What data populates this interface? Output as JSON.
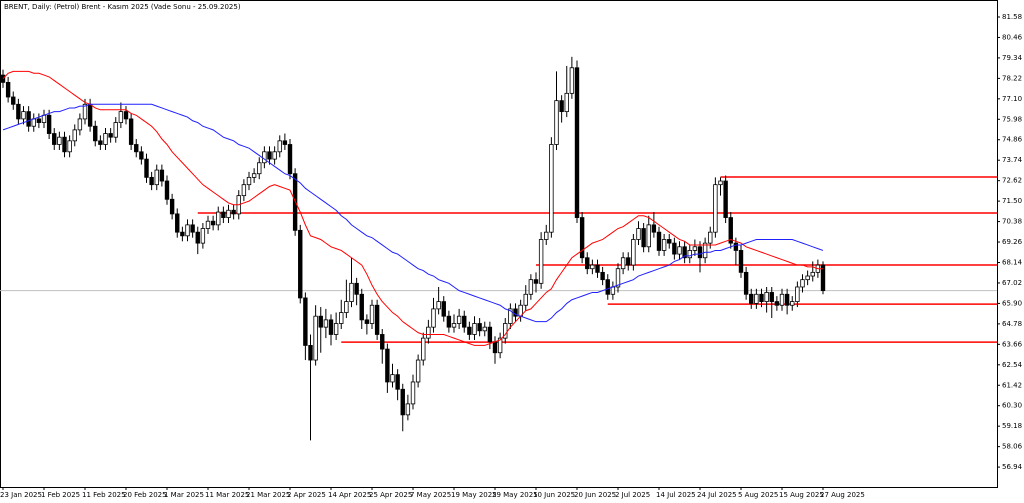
{
  "chart_data": {
    "type": "candlestick",
    "title": "BRENT, Daily:  (Petrol) Brent - Kasım 2025 (Vade Sonu - 25.09.2025)",
    "categories": [
      "23 Jan 2025",
      null,
      null,
      null,
      null,
      null,
      null,
      null,
      "1 Feb 2025",
      null,
      null,
      null,
      null,
      null,
      null,
      null,
      "11 Feb 2025",
      null,
      null,
      null,
      null,
      null,
      null,
      null,
      "20 Feb 2025",
      null,
      null,
      null,
      null,
      null,
      null,
      null,
      "1 Mar 2025",
      null,
      null,
      null,
      null,
      null,
      null,
      null,
      "11 Mar 2025",
      null,
      null,
      null,
      null,
      null,
      null,
      null,
      "21 Mar 2025",
      null,
      null,
      null,
      null,
      null,
      null,
      null,
      "2 Apr 2025",
      null,
      null,
      null,
      null,
      null,
      null,
      null,
      "14 Apr 2025",
      null,
      null,
      null,
      null,
      null,
      null,
      null,
      "25 Apr 2025",
      null,
      null,
      null,
      null,
      null,
      null,
      null,
      "7 May 2025",
      null,
      null,
      null,
      null,
      null,
      null,
      null,
      "19 May 2025",
      null,
      null,
      null,
      null,
      null,
      null,
      null,
      "29 May 2025",
      null,
      null,
      null,
      null,
      null,
      null,
      null,
      "10 Jun 2025",
      null,
      null,
      null,
      null,
      null,
      null,
      null,
      "20 Jun 2025",
      null,
      null,
      null,
      null,
      null,
      null,
      null,
      "2 Jul 2025",
      null,
      null,
      null,
      null,
      null,
      null,
      null,
      "14 Jul 2025",
      null,
      null,
      null,
      null,
      null,
      null,
      null,
      "24 Jul 2025",
      null,
      null,
      null,
      null,
      null,
      null,
      null,
      "5 Aug 2025",
      null,
      null,
      null,
      null,
      null,
      null,
      null,
      "15 Aug 2025",
      null,
      null,
      null,
      null,
      null,
      null,
      null,
      "27 Aug 2025"
    ],
    "open": [
      78.4,
      78.0,
      77.2,
      76.8,
      76.0,
      76.4,
      75.6,
      76.0,
      75.8,
      76.2,
      75.2,
      74.6,
      75.0,
      74.2,
      74.8,
      75.4,
      76.0,
      76.8,
      75.6,
      74.8,
      74.6,
      75.2,
      75.0,
      75.8,
      76.4,
      76.0,
      74.6,
      74.2,
      73.8,
      72.8,
      72.4,
      73.2,
      72.6,
      71.6,
      70.8,
      69.8,
      69.6,
      70.2,
      69.8,
      69.2,
      70.0,
      70.4,
      70.2,
      70.9,
      70.6,
      71.0,
      70.8,
      71.8,
      72.4,
      72.8,
      73.0,
      73.6,
      74.2,
      73.8,
      74.2,
      74.8,
      74.6,
      73.0,
      69.9,
      66.2,
      63.6,
      62.8,
      65.2,
      64.6,
      65.0,
      64.2,
      64.8,
      65.4,
      66.0,
      67.0,
      66.4,
      65.0,
      64.8,
      65.8,
      64.2,
      63.4,
      61.6,
      62.0,
      61.2,
      59.8,
      60.4,
      61.6,
      62.8,
      64.0,
      64.6,
      65.6,
      66.0,
      65.2,
      64.6,
      64.8,
      65.2,
      64.6,
      64.2,
      64.8,
      64.4,
      64.6,
      63.8,
      63.2,
      64.0,
      64.8,
      65.6,
      65.2,
      65.8,
      66.4,
      67.2,
      67.0,
      69.4,
      69.8,
      74.6,
      77.0,
      76.4,
      77.4,
      78.8,
      70.6,
      68.4,
      67.8,
      68.0,
      67.6,
      67.2,
      66.4,
      66.8,
      67.8,
      68.4,
      68.0,
      69.4,
      70.0,
      69.0,
      70.2,
      69.8,
      68.8,
      69.4,
      69.2,
      68.6,
      69.0,
      68.4,
      68.8,
      69.0,
      68.4,
      69.2,
      69.8,
      72.4,
      72.6,
      70.6,
      69.2,
      68.8,
      67.6,
      66.4,
      65.9,
      66.4,
      66.0,
      66.5,
      66.0,
      65.8,
      66.4,
      65.8,
      66.0,
      66.8,
      67.2,
      67.4,
      67.6,
      68.0
    ],
    "high": [
      78.7,
      78.3,
      77.5,
      77.1,
      76.7,
      76.7,
      76.3,
      76.3,
      76.5,
      76.5,
      75.5,
      75.3,
      75.3,
      75.1,
      75.7,
      76.3,
      77.1,
      77.1,
      75.9,
      75.1,
      75.5,
      75.5,
      76.1,
      76.9,
      76.7,
      76.3,
      74.9,
      74.5,
      74.1,
      73.1,
      73.5,
      73.5,
      72.9,
      71.9,
      71.1,
      70.1,
      70.5,
      70.5,
      70.1,
      70.3,
      70.7,
      70.7,
      71.2,
      71.2,
      71.3,
      71.3,
      72.1,
      72.7,
      73.1,
      73.3,
      73.9,
      74.5,
      74.5,
      74.5,
      75.1,
      75.2,
      74.9,
      73.3,
      70.2,
      66.5,
      64.2,
      65.8,
      65.7,
      65.6,
      65.3,
      65.4,
      66.1,
      67.2,
      68.4,
      67.3,
      66.7,
      65.3,
      66.1,
      66.1,
      64.5,
      63.7,
      62.6,
      62.3,
      61.5,
      60.9,
      62.0,
      63.1,
      64.3,
      65.0,
      66.2,
      66.8,
      66.3,
      65.5,
      65.3,
      65.6,
      65.5,
      64.9,
      65.2,
      65.1,
      64.9,
      64.9,
      64.1,
      64.3,
      65.1,
      65.9,
      65.9,
      66.1,
      66.9,
      67.5,
      67.6,
      69.8,
      70.2,
      75.0,
      78.6,
      77.3,
      78.9,
      79.4,
      79.2,
      70.9,
      68.7,
      68.3,
      68.3,
      67.9,
      67.5,
      67.1,
      68.1,
      68.7,
      68.7,
      69.7,
      70.4,
      70.3,
      70.7,
      70.9,
      70.1,
      69.7,
      69.7,
      69.5,
      69.3,
      69.3,
      69.1,
      69.4,
      69.3,
      69.5,
      70.1,
      72.8,
      72.8,
      72.9,
      70.9,
      69.5,
      69.1,
      67.9,
      66.7,
      66.7,
      66.7,
      66.8,
      66.8,
      66.3,
      66.7,
      66.7,
      66.3,
      67.1,
      67.5,
      67.7,
      68.2,
      68.3,
      68.2
    ],
    "low": [
      77.7,
      76.9,
      76.5,
      75.7,
      75.7,
      75.3,
      75.3,
      75.5,
      75.5,
      74.9,
      74.3,
      74.3,
      73.9,
      73.9,
      74.5,
      75.1,
      75.7,
      75.3,
      74.5,
      74.3,
      74.3,
      74.7,
      74.7,
      75.5,
      75.7,
      74.3,
      73.9,
      73.5,
      72.5,
      72.1,
      72.1,
      72.3,
      71.3,
      70.5,
      69.5,
      69.3,
      69.3,
      69.5,
      68.6,
      68.9,
      69.7,
      69.9,
      69.9,
      70.3,
      70.3,
      70.5,
      70.5,
      71.5,
      72.1,
      72.5,
      72.7,
      73.3,
      73.5,
      73.5,
      73.9,
      74.3,
      72.7,
      69.6,
      65.9,
      62.8,
      58.4,
      62.5,
      63.2,
      64.0,
      63.6,
      63.9,
      64.5,
      65.1,
      65.7,
      65.8,
      64.5,
      64.2,
      64.5,
      63.9,
      62.6,
      61.0,
      61.3,
      60.6,
      58.9,
      59.5,
      60.1,
      61.3,
      62.5,
      63.7,
      64.3,
      65.3,
      64.9,
      64.3,
      64.3,
      64.5,
      64.3,
      63.9,
      63.9,
      64.1,
      64.1,
      63.4,
      62.6,
      62.9,
      63.7,
      64.5,
      64.9,
      64.9,
      65.5,
      66.1,
      66.5,
      66.7,
      69.1,
      69.5,
      74.3,
      75.8,
      76.1,
      77.1,
      70.3,
      68.1,
      67.5,
      67.5,
      67.3,
      66.9,
      66.1,
      66.1,
      66.5,
      67.5,
      67.7,
      67.7,
      69.1,
      68.7,
      68.7,
      69.5,
      68.5,
      68.5,
      68.9,
      68.3,
      68.3,
      68.1,
      68.1,
      68.5,
      67.6,
      68.1,
      68.9,
      69.5,
      71.8,
      70.3,
      68.9,
      68.0,
      67.3,
      66.1,
      65.6,
      65.6,
      65.7,
      65.4,
      65.1,
      65.5,
      65.5,
      65.3,
      65.5,
      65.7,
      66.5,
      66.9,
      67.1,
      67.3,
      66.4
    ],
    "close": [
      78.0,
      77.2,
      76.8,
      76.0,
      76.4,
      75.6,
      76.0,
      75.8,
      76.2,
      75.2,
      74.6,
      75.0,
      74.2,
      74.8,
      75.4,
      76.0,
      76.8,
      75.6,
      74.8,
      74.6,
      75.2,
      75.0,
      75.8,
      76.4,
      76.0,
      74.6,
      74.2,
      73.8,
      72.8,
      72.4,
      73.2,
      72.6,
      71.6,
      70.8,
      69.8,
      69.6,
      70.2,
      69.8,
      69.2,
      70.0,
      70.4,
      70.2,
      70.9,
      70.6,
      71.0,
      70.8,
      71.8,
      72.4,
      72.8,
      73.0,
      73.6,
      74.2,
      73.8,
      74.2,
      74.8,
      74.6,
      73.0,
      69.9,
      66.2,
      63.6,
      62.8,
      65.2,
      64.6,
      65.0,
      64.2,
      64.8,
      65.4,
      66.0,
      67.0,
      66.4,
      65.0,
      64.8,
      65.8,
      64.2,
      63.4,
      61.6,
      62.0,
      61.2,
      59.8,
      60.4,
      61.6,
      62.8,
      64.0,
      64.6,
      65.6,
      66.0,
      65.2,
      64.6,
      64.8,
      65.2,
      64.6,
      64.2,
      64.8,
      64.4,
      64.6,
      63.8,
      63.2,
      64.0,
      64.8,
      65.6,
      65.2,
      65.8,
      66.4,
      67.2,
      67.0,
      69.4,
      69.8,
      74.6,
      77.0,
      76.4,
      77.4,
      78.8,
      70.6,
      68.4,
      67.8,
      68.0,
      67.6,
      67.2,
      66.4,
      66.8,
      67.8,
      68.4,
      68.0,
      69.4,
      70.0,
      69.0,
      70.2,
      69.8,
      68.8,
      69.4,
      69.2,
      68.6,
      69.0,
      68.4,
      68.8,
      69.0,
      68.4,
      69.2,
      69.8,
      72.4,
      72.6,
      70.6,
      69.2,
      68.8,
      67.6,
      66.4,
      65.9,
      66.4,
      66.0,
      66.5,
      66.0,
      65.8,
      66.4,
      65.8,
      66.0,
      66.8,
      67.2,
      67.4,
      67.6,
      68.0,
      66.6
    ],
    "up_color": "#ffffff",
    "down_color": "#000000",
    "lines": [
      {
        "color": "#ff0000",
        "values": [
          78.2,
          78.5,
          78.6,
          78.6,
          78.6,
          78.6,
          78.5,
          78.5,
          78.4,
          78.3,
          78.1,
          77.9,
          77.7,
          77.5,
          77.3,
          77.1,
          76.9,
          76.8,
          76.6,
          76.5,
          76.5,
          76.5,
          76.5,
          76.5,
          76.5,
          76.3,
          76.2,
          76.0,
          75.8,
          75.6,
          75.3,
          74.9,
          74.6,
          74.2,
          73.9,
          73.6,
          73.3,
          73.0,
          72.7,
          72.4,
          72.2,
          72.0,
          71.8,
          71.6,
          71.4,
          71.3,
          71.3,
          71.4,
          71.5,
          71.7,
          71.9,
          72.1,
          72.3,
          72.4,
          72.3,
          72.2,
          72.1,
          71.5,
          70.9,
          70.2,
          69.6,
          69.5,
          69.4,
          69.2,
          69.0,
          68.9,
          68.8,
          68.6,
          68.4,
          68.2,
          68.0,
          67.5,
          66.9,
          66.4,
          66.0,
          65.7,
          65.4,
          65.2,
          64.9,
          64.7,
          64.5,
          64.3,
          64.2,
          64.2,
          64.2,
          64.2,
          64.2,
          64.1,
          64.0,
          63.9,
          63.8,
          63.7,
          63.6,
          63.6,
          63.6,
          63.7,
          63.8,
          63.9,
          64.2,
          64.6,
          64.9,
          65.2,
          65.5,
          65.6,
          65.9,
          66.2,
          66.5,
          66.7,
          67.2,
          67.6,
          68.0,
          68.4,
          68.6,
          68.8,
          69.0,
          69.2,
          69.3,
          69.4,
          69.6,
          69.8,
          70.0,
          70.1,
          70.3,
          70.5,
          70.7,
          70.7,
          70.6,
          70.4,
          70.2,
          70.0,
          69.8,
          69.6,
          69.4,
          69.3,
          69.1,
          69.1,
          69.1,
          69.1,
          69.1,
          69.1,
          69.2,
          69.3,
          69.4,
          69.3,
          69.2,
          69.0,
          68.9,
          68.8,
          68.7,
          68.6,
          68.5,
          68.4,
          68.3,
          68.2,
          68.1,
          68.0,
          68.0,
          67.9,
          67.9,
          67.8,
          67.8
        ]
      },
      {
        "color": "#2020ff",
        "values": [
          75.4,
          75.5,
          75.6,
          75.7,
          75.8,
          75.9,
          76.0,
          76.1,
          76.2,
          76.3,
          76.4,
          76.4,
          76.5,
          76.6,
          76.6,
          76.7,
          76.7,
          76.8,
          76.8,
          76.8,
          76.8,
          76.8,
          76.8,
          76.8,
          76.8,
          76.8,
          76.8,
          76.8,
          76.8,
          76.8,
          76.7,
          76.6,
          76.5,
          76.4,
          76.3,
          76.2,
          76.1,
          75.9,
          75.8,
          75.6,
          75.5,
          75.4,
          75.2,
          75.0,
          74.9,
          74.8,
          74.6,
          74.5,
          74.4,
          74.2,
          74.0,
          73.8,
          73.6,
          73.4,
          73.2,
          73.0,
          72.9,
          72.7,
          72.5,
          72.2,
          72.0,
          71.8,
          71.6,
          71.4,
          71.2,
          71.0,
          70.7,
          70.5,
          70.2,
          70.0,
          69.8,
          69.6,
          69.5,
          69.3,
          69.1,
          68.9,
          68.7,
          68.6,
          68.4,
          68.2,
          68.0,
          67.8,
          67.7,
          67.5,
          67.4,
          67.2,
          67.1,
          67.0,
          66.8,
          66.6,
          66.5,
          66.4,
          66.3,
          66.2,
          66.1,
          66.0,
          65.9,
          65.8,
          65.6,
          65.5,
          65.3,
          65.2,
          65.1,
          65.0,
          64.9,
          64.9,
          64.9,
          65.1,
          65.4,
          65.6,
          65.9,
          66.1,
          66.2,
          66.3,
          66.4,
          66.5,
          66.5,
          66.6,
          66.7,
          66.8,
          66.9,
          67.0,
          67.1,
          67.2,
          67.4,
          67.5,
          67.6,
          67.7,
          67.8,
          67.9,
          68.0,
          68.2,
          68.3,
          68.5,
          68.5,
          68.6,
          68.6,
          68.7,
          68.7,
          68.8,
          68.8,
          68.9,
          69.0,
          69.1,
          69.1,
          69.2,
          69.3,
          69.4,
          69.4,
          69.4,
          69.4,
          69.4,
          69.4,
          69.4,
          69.4,
          69.3,
          69.2,
          69.1,
          69.0,
          68.9,
          68.8
        ]
      }
    ],
    "levels": [
      {
        "value": 72.82,
        "from": 140
      },
      {
        "value": 70.85,
        "from": 38
      },
      {
        "value": 68.0,
        "from": 104
      },
      {
        "value": 65.86,
        "from": 118
      },
      {
        "value": 63.78,
        "from": 66
      }
    ],
    "level_color": "#ff0000",
    "ylim": [
      55.85,
      82.51
    ],
    "yticks": [
      81.58,
      80.46,
      79.34,
      78.22,
      {
        "value": 77.1,
        "label": "77.10"
      },
      75.98,
      74.86,
      73.74,
      72.62,
      {
        "value": 71.5,
        "label": "71.50"
      },
      70.38,
      69.26,
      68.14,
      67.02,
      {
        "value": 65.9,
        "label": "65.90"
      },
      64.78,
      63.66,
      62.54,
      61.42,
      {
        "value": 60.3,
        "label": "60.30"
      },
      59.18,
      58.06,
      56.94
    ]
  }
}
